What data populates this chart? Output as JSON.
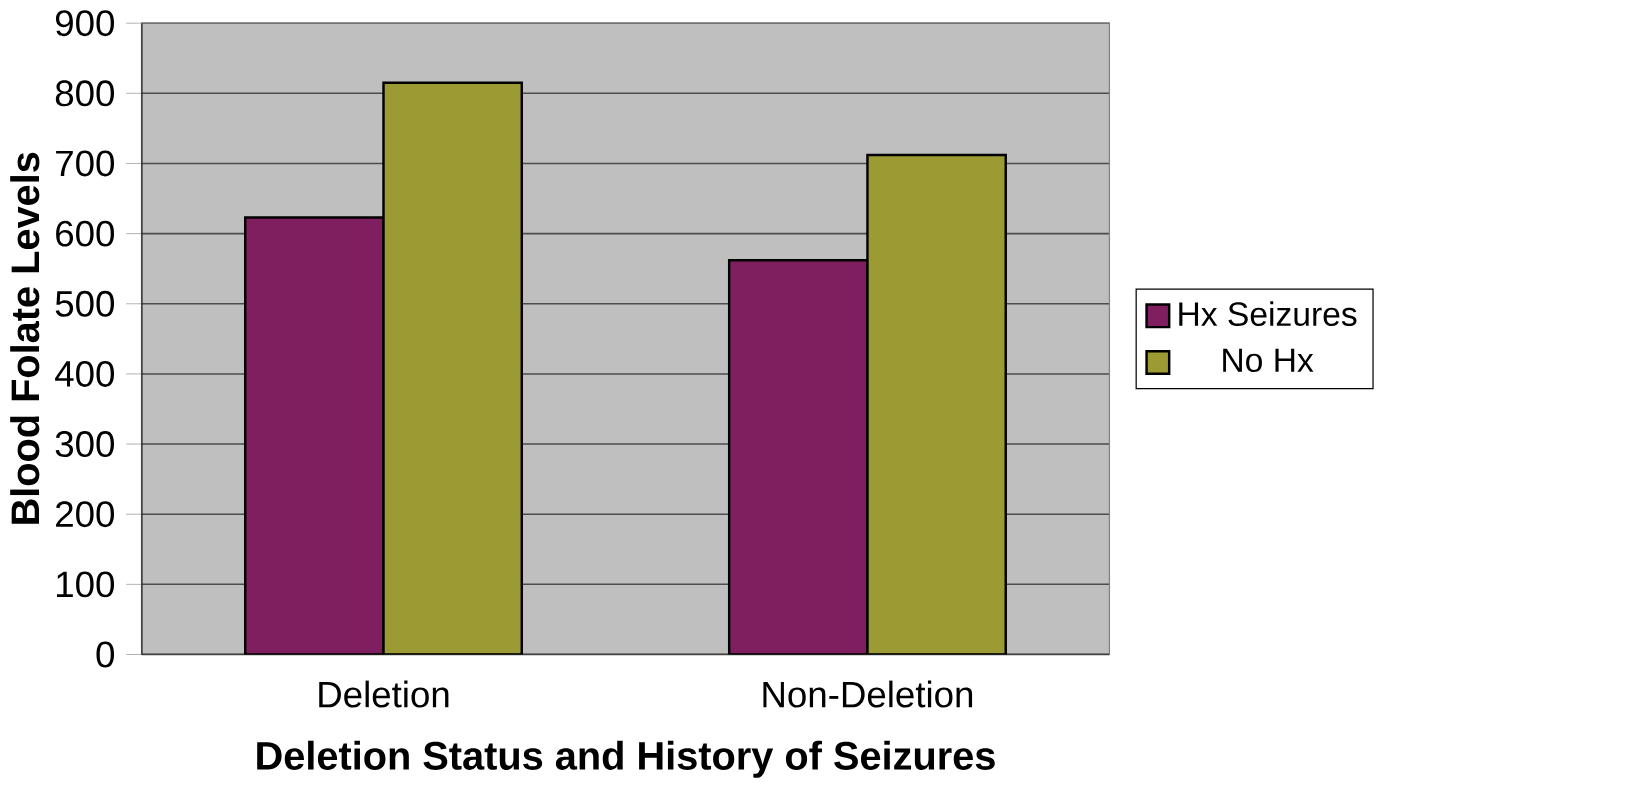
{
  "chart_data": {
    "type": "bar",
    "xlabel": "Deletion Status and History of Seizures",
    "ylabel": "Blood Folate Levels",
    "categories": [
      "Deletion",
      "Non-Deletion"
    ],
    "series": [
      {
        "name": "Hx Seizures",
        "color": "#7f1f5f",
        "values": [
          623,
          562
        ]
      },
      {
        "name": "No Hx",
        "color": "#9c9a33",
        "values": [
          815,
          712
        ]
      }
    ],
    "ylim": [
      0,
      900
    ],
    "yticks": [
      0,
      100,
      200,
      300,
      400,
      500,
      600,
      700,
      800,
      900
    ],
    "grid": "y",
    "legend": "right"
  }
}
